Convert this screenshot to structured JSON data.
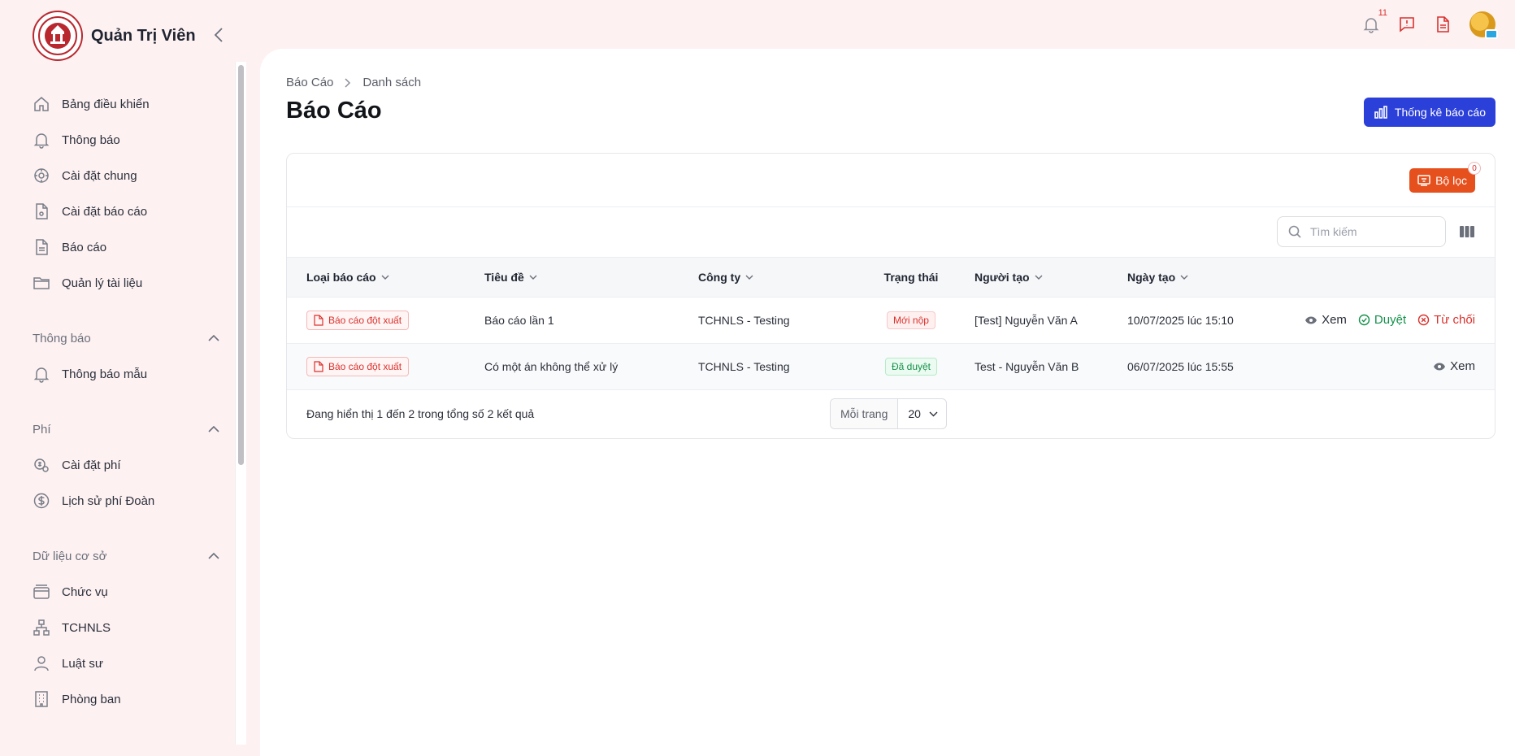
{
  "app": {
    "title": "Quản Trị Viên"
  },
  "sidebar": {
    "items": [
      {
        "label": "Bảng điều khiển",
        "icon": "home-icon"
      },
      {
        "label": "Thông báo",
        "icon": "bell-icon"
      },
      {
        "label": "Cài đặt chung",
        "icon": "settings-icon"
      },
      {
        "label": "Cài đặt báo cáo",
        "icon": "file-settings-icon"
      },
      {
        "label": "Báo cáo",
        "icon": "file-icon"
      },
      {
        "label": "Quản lý tài liệu",
        "icon": "folder-icon"
      }
    ],
    "sections": [
      {
        "label": "Thông báo",
        "items": [
          {
            "label": "Thông báo mẫu",
            "icon": "bell-icon"
          }
        ]
      },
      {
        "label": "Phí",
        "items": [
          {
            "label": "Cài đặt phí",
            "icon": "fee-settings-icon"
          },
          {
            "label": "Lịch sử phí Đoàn",
            "icon": "dollar-icon"
          }
        ]
      },
      {
        "label": "Dữ liệu cơ sở",
        "items": [
          {
            "label": "Chức vụ",
            "icon": "position-icon"
          },
          {
            "label": "TCHNLS",
            "icon": "org-tree-icon"
          },
          {
            "label": "Luật sư",
            "icon": "user-icon"
          },
          {
            "label": "Phòng ban",
            "icon": "building-icon"
          }
        ]
      }
    ]
  },
  "header": {
    "notification_count": "11"
  },
  "breadcrumb": {
    "root": "Báo Cáo",
    "current": "Danh sách"
  },
  "page": {
    "title": "Báo Cáo",
    "stats_button": "Thống kê báo cáo"
  },
  "filter": {
    "label": "Bộ lọc",
    "count": "0"
  },
  "search": {
    "placeholder": "Tìm kiếm"
  },
  "table": {
    "headers": {
      "type": "Loại báo cáo",
      "title": "Tiêu đề",
      "company": "Công ty",
      "status": "Trạng thái",
      "creator": "Người tạo",
      "created": "Ngày tạo"
    },
    "rows": [
      {
        "type": "Báo cáo đột xuất",
        "title": "Báo cáo lần 1",
        "company": "TCHNLS - Testing",
        "status": "Mới nộp",
        "creator": "[Test] Nguyễn Văn A",
        "created": "10/07/2025 lúc 15:10",
        "view": "Xem",
        "approve": "Duyệt",
        "reject": "Từ chối"
      },
      {
        "type": "Báo cáo đột xuất",
        "title": "Có một án không thể xử lý",
        "company": "TCHNLS - Testing",
        "status": "Đã duyệt",
        "creator": "Test - Nguyễn Văn B",
        "created": "06/07/2025 lúc 15:55",
        "view": "Xem"
      }
    ]
  },
  "footer": {
    "summary": "Đang hiển thị 1 đến 2 trong tổng số 2 kết quả",
    "per_page_label": "Mỗi trang",
    "per_page_value": "20"
  },
  "colors": {
    "primary": "#2b3fd9",
    "filter": "#e5501d",
    "danger": "#d9312c",
    "success": "#13904a",
    "sidebar_bg": "#fdf1f2"
  }
}
